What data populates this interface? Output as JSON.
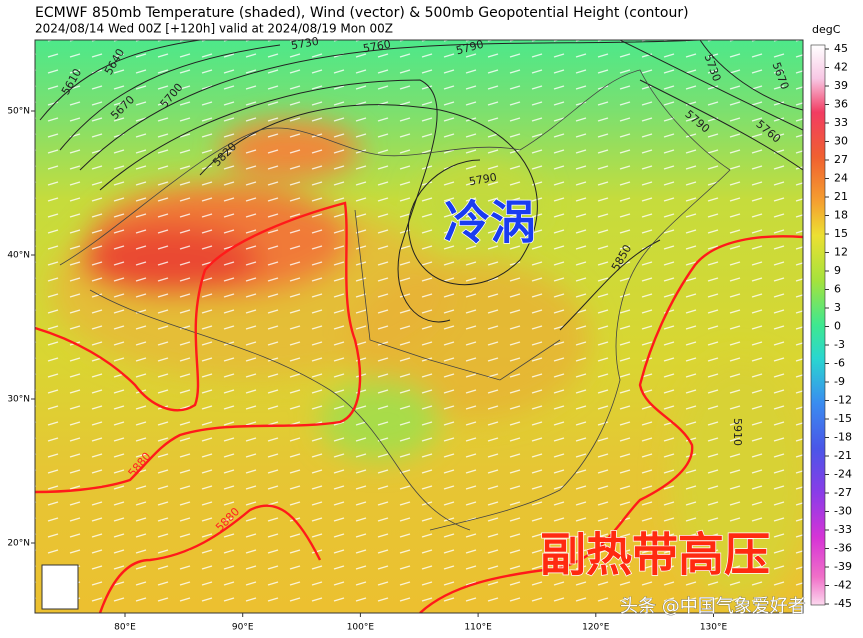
{
  "header": {
    "title": "ECMWF 850mb Temperature (shaded), Wind (vector) & 500mb Geopotential Height (contour)",
    "subtitle": "2024/08/14 Wed 00Z [+120h] valid at 2024/08/19 Mon 00Z"
  },
  "map": {
    "lat_ticks": [
      {
        "value": 50,
        "label": "50°N"
      },
      {
        "value": 40,
        "label": "40°N"
      },
      {
        "value": 30,
        "label": "30°N"
      },
      {
        "value": 20,
        "label": "20°N"
      }
    ],
    "lon_ticks": [
      {
        "value": 80,
        "label": "80°E"
      },
      {
        "value": 90,
        "label": "90°E"
      },
      {
        "value": 100,
        "label": "100°E"
      },
      {
        "value": 110,
        "label": "110°E"
      },
      {
        "value": 120,
        "label": "120°E"
      },
      {
        "value": 130,
        "label": "130°E"
      }
    ],
    "contour_labels": [
      5610,
      5640,
      5670,
      5700,
      5730,
      5760,
      5790,
      5820,
      5790,
      5730,
      5670,
      5790,
      5760,
      5850,
      5880,
      5880,
      5910
    ],
    "annotations": [
      "冷涡",
      "副热带高压"
    ],
    "watermark": "头条 @中国气象爱好者"
  },
  "colorbar": {
    "label": "degC",
    "ticks": [
      45,
      42,
      39,
      36,
      33,
      30,
      27,
      24,
      21,
      18,
      15,
      12,
      9,
      6,
      3,
      0,
      -3,
      -6,
      -9,
      -12,
      -15,
      -18,
      -21,
      -24,
      -27,
      -30,
      -33,
      -36,
      -39,
      -42,
      -45
    ]
  }
}
